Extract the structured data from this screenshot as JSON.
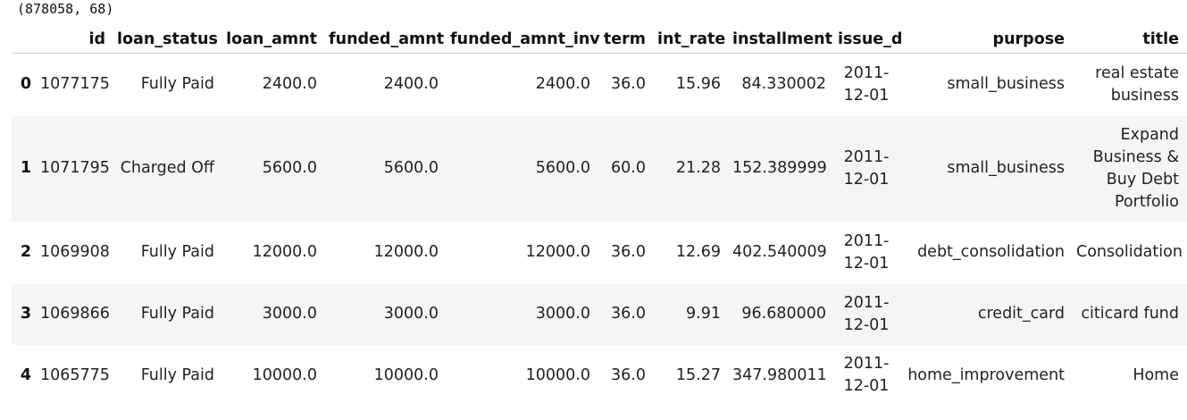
{
  "output": {
    "shape_text": "(878058, 68)"
  },
  "table": {
    "index_header": "",
    "columns": [
      "id",
      "loan_status",
      "loan_amnt",
      "funded_amnt",
      "funded_amnt_inv",
      "term",
      "int_rate",
      "installment",
      "issue_d",
      "purpose",
      "title"
    ],
    "rows": [
      {
        "index": "0",
        "cells": [
          "1077175",
          "Fully Paid",
          "2400.0",
          "2400.0",
          "2400.0",
          "36.0",
          "15.96",
          "84.330002",
          "2011-12-01",
          "small_business",
          "real estate business"
        ]
      },
      {
        "index": "1",
        "cells": [
          "1071795",
          "Charged Off",
          "5600.0",
          "5600.0",
          "5600.0",
          "60.0",
          "21.28",
          "152.389999",
          "2011-12-01",
          "small_business",
          "Expand Business & Buy Debt Portfolio"
        ]
      },
      {
        "index": "2",
        "cells": [
          "1069908",
          "Fully Paid",
          "12000.0",
          "12000.0",
          "12000.0",
          "36.0",
          "12.69",
          "402.540009",
          "2011-12-01",
          "debt_consolidation",
          "Consolidation"
        ]
      },
      {
        "index": "3",
        "cells": [
          "1069866",
          "Fully Paid",
          "3000.0",
          "3000.0",
          "3000.0",
          "36.0",
          "9.91",
          "96.680000",
          "2011-12-01",
          "credit_card",
          "citicard fund"
        ]
      },
      {
        "index": "4",
        "cells": [
          "1065775",
          "Fully Paid",
          "10000.0",
          "10000.0",
          "10000.0",
          "36.0",
          "15.27",
          "347.980011",
          "2011-12-01",
          "home_improvement",
          "Home"
        ]
      }
    ]
  },
  "colors": {
    "striped_row_background": "#f5f5f5",
    "header_border": "#cfcfcf",
    "text": "#222222"
  }
}
